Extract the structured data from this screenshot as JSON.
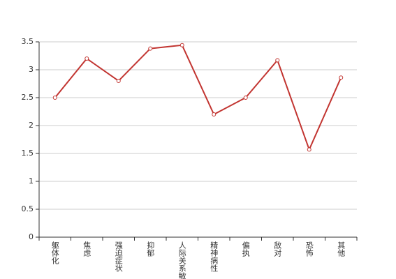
{
  "chart_data": {
    "type": "line",
    "categories": [
      "躯体化",
      "焦虑",
      "强迫症状",
      "抑郁",
      "人际关系敏感",
      "精神病性",
      "偏执",
      "敌对",
      "恐怖",
      "其他"
    ],
    "series": [
      {
        "color": "#c23531",
        "values": [
          2.5,
          3.2,
          2.8,
          3.38,
          3.44,
          2.2,
          2.5,
          3.17,
          1.57,
          2.86
        ]
      }
    ],
    "ylim": [
      0,
      3.5
    ],
    "yticks": [
      0,
      0.5,
      1,
      1.5,
      2,
      2.5,
      3,
      3.5
    ],
    "grid": true
  }
}
